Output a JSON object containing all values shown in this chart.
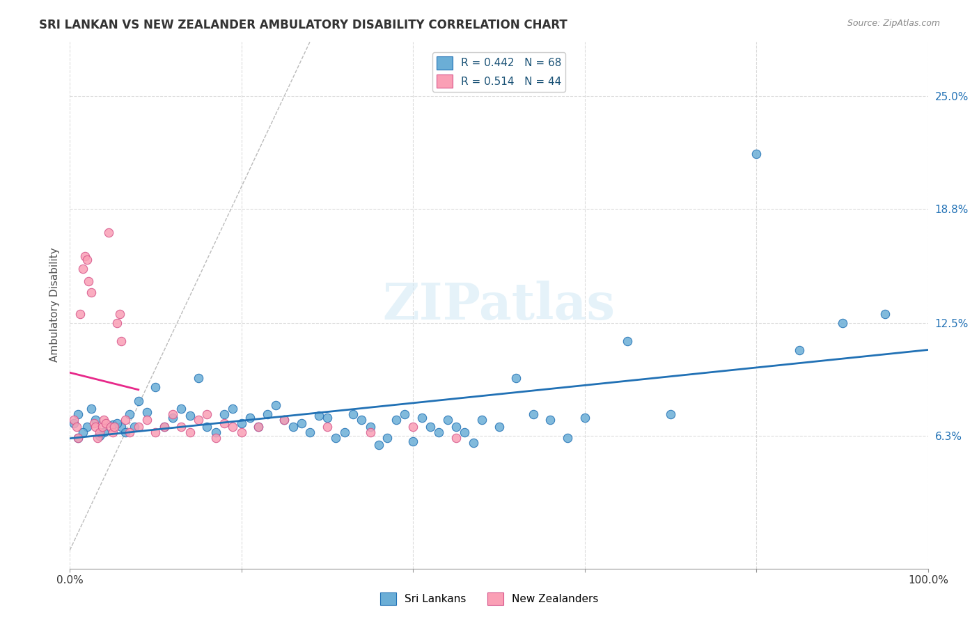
{
  "title": "SRI LANKAN VS NEW ZEALANDER AMBULATORY DISABILITY CORRELATION CHART",
  "source": "Source: ZipAtlas.com",
  "ylabel": "Ambulatory Disability",
  "xlabel": "",
  "xlim": [
    0,
    1.0
  ],
  "ylim": [
    -0.01,
    0.28
  ],
  "yticks": [
    0.063,
    0.125,
    0.188,
    0.25
  ],
  "ytick_labels": [
    "6.3%",
    "12.5%",
    "18.8%",
    "25.0%"
  ],
  "xtick_labels": [
    "0.0%",
    "",
    "",
    "",
    "",
    "100.0%"
  ],
  "legend_R1": "0.442",
  "legend_N1": "68",
  "legend_R2": "0.514",
  "legend_N2": "44",
  "blue_color": "#6baed6",
  "pink_color": "#fa9fb5",
  "blue_line_color": "#2171b5",
  "pink_line_color": "#e7298a",
  "watermark": "ZIPatlas",
  "background_color": "#ffffff",
  "grid_color": "#cccccc",
  "title_color": "#333333",
  "sri_lankans_scatter_x": [
    0.01,
    0.02,
    0.01,
    0.005,
    0.015,
    0.03,
    0.025,
    0.04,
    0.035,
    0.05,
    0.06,
    0.07,
    0.08,
    0.055,
    0.065,
    0.075,
    0.09,
    0.1,
    0.11,
    0.12,
    0.13,
    0.14,
    0.15,
    0.16,
    0.17,
    0.18,
    0.19,
    0.2,
    0.21,
    0.22,
    0.23,
    0.24,
    0.25,
    0.26,
    0.27,
    0.28,
    0.29,
    0.3,
    0.31,
    0.32,
    0.33,
    0.34,
    0.35,
    0.36,
    0.37,
    0.38,
    0.39,
    0.4,
    0.41,
    0.42,
    0.43,
    0.44,
    0.45,
    0.46,
    0.47,
    0.48,
    0.5,
    0.52,
    0.54,
    0.56,
    0.58,
    0.6,
    0.65,
    0.7,
    0.8,
    0.85,
    0.9,
    0.95
  ],
  "sri_lankans_scatter_y": [
    0.075,
    0.068,
    0.062,
    0.07,
    0.065,
    0.072,
    0.078,
    0.065,
    0.063,
    0.069,
    0.068,
    0.075,
    0.082,
    0.07,
    0.065,
    0.068,
    0.076,
    0.09,
    0.068,
    0.073,
    0.078,
    0.074,
    0.095,
    0.068,
    0.065,
    0.075,
    0.078,
    0.07,
    0.073,
    0.068,
    0.075,
    0.08,
    0.072,
    0.068,
    0.07,
    0.065,
    0.074,
    0.073,
    0.062,
    0.065,
    0.075,
    0.072,
    0.068,
    0.058,
    0.062,
    0.072,
    0.075,
    0.06,
    0.073,
    0.068,
    0.065,
    0.072,
    0.068,
    0.065,
    0.059,
    0.072,
    0.068,
    0.095,
    0.075,
    0.072,
    0.062,
    0.073,
    0.115,
    0.075,
    0.218,
    0.11,
    0.125,
    0.13
  ],
  "new_zealanders_scatter_x": [
    0.005,
    0.008,
    0.01,
    0.012,
    0.015,
    0.018,
    0.02,
    0.022,
    0.025,
    0.028,
    0.03,
    0.032,
    0.035,
    0.038,
    0.04,
    0.042,
    0.045,
    0.048,
    0.05,
    0.052,
    0.055,
    0.058,
    0.06,
    0.065,
    0.07,
    0.08,
    0.09,
    0.1,
    0.11,
    0.12,
    0.13,
    0.14,
    0.15,
    0.16,
    0.17,
    0.18,
    0.19,
    0.2,
    0.22,
    0.25,
    0.3,
    0.35,
    0.4,
    0.45
  ],
  "new_zealanders_scatter_y": [
    0.072,
    0.068,
    0.062,
    0.13,
    0.155,
    0.162,
    0.16,
    0.148,
    0.142,
    0.07,
    0.068,
    0.062,
    0.065,
    0.068,
    0.072,
    0.07,
    0.175,
    0.068,
    0.065,
    0.068,
    0.125,
    0.13,
    0.115,
    0.072,
    0.065,
    0.068,
    0.072,
    0.065,
    0.068,
    0.075,
    0.068,
    0.065,
    0.072,
    0.075,
    0.062,
    0.07,
    0.068,
    0.065,
    0.068,
    0.072,
    0.068,
    0.065,
    0.068,
    0.062
  ]
}
